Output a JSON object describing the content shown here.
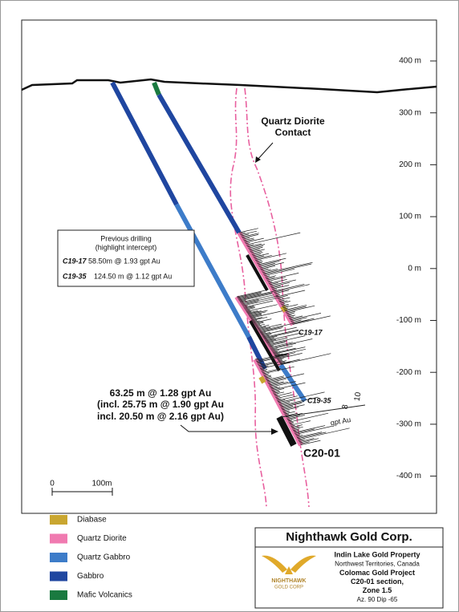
{
  "elevations": [
    "400 m",
    "300 m",
    "200 m",
    "100 m",
    "0 m",
    "-100 m",
    "-200 m",
    "-300 m",
    "-400 m"
  ],
  "contact_label": [
    "Quartz Diorite",
    "Contact"
  ],
  "previous_drilling": {
    "title": "Previous drilling",
    "subtitle": "(highlight intercept)",
    "rows": [
      {
        "hole": "C19-17",
        "text": "58.50m @ 1.93 gpt Au"
      },
      {
        "hole": "C19-35",
        "text": "124.50 m @ 1.12 gpt Au"
      }
    ]
  },
  "intercept": [
    "63.25 m @ 1.28 gpt Au",
    "(incl. 25.75 m @ 1.90 gpt Au",
    "incl. 20.50 m @ 2.16 gpt Au)"
  ],
  "holes": [
    "C19-17",
    "C19-35",
    "C20-01"
  ],
  "grade_scale": {
    "ticks": [
      "10",
      "8"
    ],
    "unit": "gpt Au"
  },
  "scale_bar": [
    "0",
    "100m"
  ],
  "legend": [
    {
      "label": "Diabase",
      "color": "#c9a630"
    },
    {
      "label": "Quartz Diorite",
      "color": "#f07ab0"
    },
    {
      "label": "Quartz Gabbro",
      "color": "#3d7cc9"
    },
    {
      "label": "Gabbro",
      "color": "#1f46a0"
    },
    {
      "label": "Mafic Volcanics",
      "color": "#1a7a40"
    }
  ],
  "title_box": {
    "company": "Nighthawk Gold Corp.",
    "logo": [
      "NIGHTHAWK",
      "GOLD CORP"
    ],
    "lines": [
      "Indin Lake Gold Property",
      "Northwest Territories, Canada",
      "Colomac Gold Project",
      "C20-01 section,",
      "Zone 1.5",
      "Az. 90 Dip -65"
    ]
  }
}
